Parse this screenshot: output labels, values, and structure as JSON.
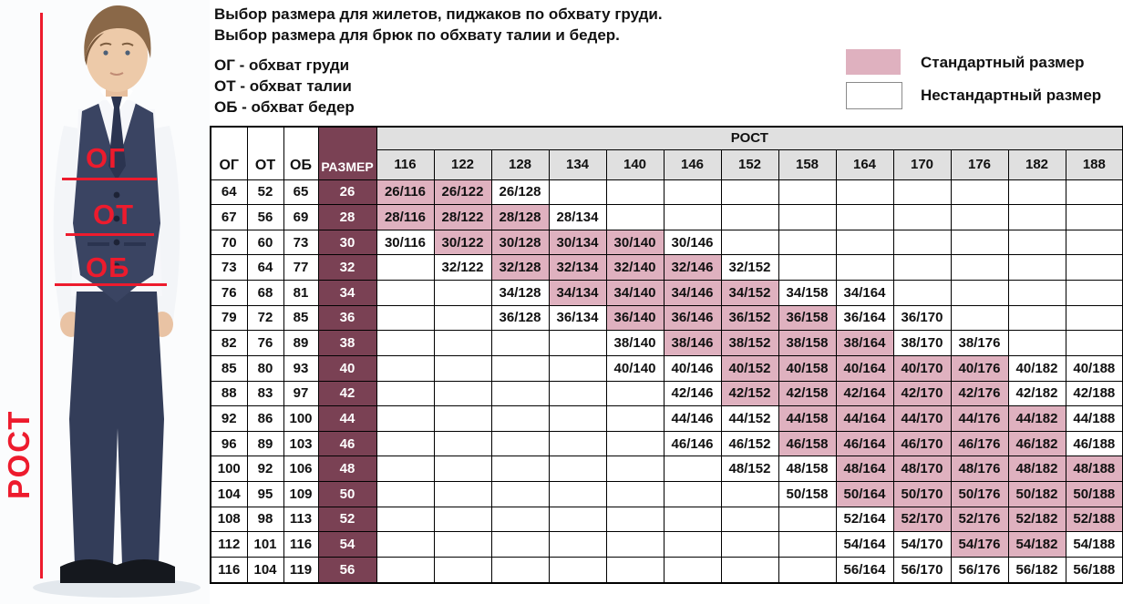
{
  "intro": {
    "line1": "Выбор размера для жилетов, пиджаков по обхвату груди.",
    "line2": "Выбор размера для брюк по обхвату талии и бедер."
  },
  "abbreviations": {
    "chest": "ОГ - обхват груди",
    "waist": "ОТ - обхват талии",
    "hips": "ОБ - обхват бедер"
  },
  "legend": {
    "standard": "Стандартный размер",
    "nonstandard": "Нестандартный размер"
  },
  "figure_labels": {
    "chest": "ОГ",
    "waist": "ОТ",
    "hips": "ОБ",
    "height": "РОСТ"
  },
  "colors": {
    "standard_cell": "#dfb1bf",
    "size_column": "#7a4154",
    "header_gray": "#e0e0e0",
    "accent_red": "#ed1b2d"
  },
  "table": {
    "col_headers": {
      "og": "ОГ",
      "ot": "ОТ",
      "ob": "ОБ",
      "size": "РАЗМЕР",
      "rost": "РОСТ"
    },
    "heights": [
      116,
      122,
      128,
      134,
      140,
      146,
      152,
      158,
      164,
      170,
      176,
      182,
      188
    ],
    "rows": [
      {
        "og": "64",
        "ot": "52",
        "ob": "65",
        "size": "26",
        "c": [
          {
            "t": "26/116",
            "s": true
          },
          {
            "t": "26/122",
            "s": true
          },
          {
            "t": "26/128",
            "s": false
          },
          null,
          null,
          null,
          null,
          null,
          null,
          null,
          null,
          null,
          null
        ]
      },
      {
        "og": "67",
        "ot": "56",
        "ob": "69",
        "size": "28",
        "c": [
          {
            "t": "28/116",
            "s": true
          },
          {
            "t": "28/122",
            "s": true
          },
          {
            "t": "28/128",
            "s": true
          },
          {
            "t": "28/134",
            "s": false
          },
          null,
          null,
          null,
          null,
          null,
          null,
          null,
          null,
          null
        ]
      },
      {
        "og": "70",
        "ot": "60",
        "ob": "73",
        "size": "30",
        "c": [
          {
            "t": "30/116",
            "s": false
          },
          {
            "t": "30/122",
            "s": true
          },
          {
            "t": "30/128",
            "s": true
          },
          {
            "t": "30/134",
            "s": true
          },
          {
            "t": "30/140",
            "s": true
          },
          {
            "t": "30/146",
            "s": false
          },
          null,
          null,
          null,
          null,
          null,
          null,
          null
        ]
      },
      {
        "og": "73",
        "ot": "64",
        "ob": "77",
        "size": "32",
        "c": [
          null,
          {
            "t": "32/122",
            "s": false
          },
          {
            "t": "32/128",
            "s": true
          },
          {
            "t": "32/134",
            "s": true
          },
          {
            "t": "32/140",
            "s": true
          },
          {
            "t": "32/146",
            "s": true
          },
          {
            "t": "32/152",
            "s": false
          },
          null,
          null,
          null,
          null,
          null,
          null
        ]
      },
      {
        "og": "76",
        "ot": "68",
        "ob": "81",
        "size": "34",
        "c": [
          null,
          null,
          {
            "t": "34/128",
            "s": false
          },
          {
            "t": "34/134",
            "s": true
          },
          {
            "t": "34/140",
            "s": true
          },
          {
            "t": "34/146",
            "s": true
          },
          {
            "t": "34/152",
            "s": true
          },
          {
            "t": "34/158",
            "s": false
          },
          {
            "t": "34/164",
            "s": false
          },
          null,
          null,
          null,
          null
        ]
      },
      {
        "og": "79",
        "ot": "72",
        "ob": "85",
        "size": "36",
        "c": [
          null,
          null,
          {
            "t": "36/128",
            "s": false
          },
          {
            "t": "36/134",
            "s": false
          },
          {
            "t": "36/140",
            "s": true
          },
          {
            "t": "36/146",
            "s": true
          },
          {
            "t": "36/152",
            "s": true
          },
          {
            "t": "36/158",
            "s": true
          },
          {
            "t": "36/164",
            "s": false
          },
          {
            "t": "36/170",
            "s": false
          },
          null,
          null,
          null
        ]
      },
      {
        "og": "82",
        "ot": "76",
        "ob": "89",
        "size": "38",
        "c": [
          null,
          null,
          null,
          null,
          {
            "t": "38/140",
            "s": false
          },
          {
            "t": "38/146",
            "s": true
          },
          {
            "t": "38/152",
            "s": true
          },
          {
            "t": "38/158",
            "s": true
          },
          {
            "t": "38/164",
            "s": true
          },
          {
            "t": "38/170",
            "s": false
          },
          {
            "t": "38/176",
            "s": false
          },
          null,
          null
        ]
      },
      {
        "og": "85",
        "ot": "80",
        "ob": "93",
        "size": "40",
        "c": [
          null,
          null,
          null,
          null,
          {
            "t": "40/140",
            "s": false
          },
          {
            "t": "40/146",
            "s": false
          },
          {
            "t": "40/152",
            "s": true
          },
          {
            "t": "40/158",
            "s": true
          },
          {
            "t": "40/164",
            "s": true
          },
          {
            "t": "40/170",
            "s": true
          },
          {
            "t": "40/176",
            "s": true
          },
          {
            "t": "40/182",
            "s": false
          },
          {
            "t": "40/188",
            "s": false
          }
        ]
      },
      {
        "og": "88",
        "ot": "83",
        "ob": "97",
        "size": "42",
        "c": [
          null,
          null,
          null,
          null,
          null,
          {
            "t": "42/146",
            "s": false
          },
          {
            "t": "42/152",
            "s": true
          },
          {
            "t": "42/158",
            "s": true
          },
          {
            "t": "42/164",
            "s": true
          },
          {
            "t": "42/170",
            "s": true
          },
          {
            "t": "42/176",
            "s": true
          },
          {
            "t": "42/182",
            "s": false
          },
          {
            "t": "42/188",
            "s": false
          }
        ]
      },
      {
        "og": "92",
        "ot": "86",
        "ob": "100",
        "size": "44",
        "c": [
          null,
          null,
          null,
          null,
          null,
          {
            "t": "44/146",
            "s": false
          },
          {
            "t": "44/152",
            "s": false
          },
          {
            "t": "44/158",
            "s": true
          },
          {
            "t": "44/164",
            "s": true
          },
          {
            "t": "44/170",
            "s": true
          },
          {
            "t": "44/176",
            "s": true
          },
          {
            "t": "44/182",
            "s": true
          },
          {
            "t": "44/188",
            "s": false
          }
        ]
      },
      {
        "og": "96",
        "ot": "89",
        "ob": "103",
        "size": "46",
        "c": [
          null,
          null,
          null,
          null,
          null,
          {
            "t": "46/146",
            "s": false
          },
          {
            "t": "46/152",
            "s": false
          },
          {
            "t": "46/158",
            "s": true
          },
          {
            "t": "46/164",
            "s": true
          },
          {
            "t": "46/170",
            "s": true
          },
          {
            "t": "46/176",
            "s": true
          },
          {
            "t": "46/182",
            "s": true
          },
          {
            "t": "46/188",
            "s": false
          }
        ]
      },
      {
        "og": "100",
        "ot": "92",
        "ob": "106",
        "size": "48",
        "c": [
          null,
          null,
          null,
          null,
          null,
          null,
          {
            "t": "48/152",
            "s": false
          },
          {
            "t": "48/158",
            "s": false
          },
          {
            "t": "48/164",
            "s": true
          },
          {
            "t": "48/170",
            "s": true
          },
          {
            "t": "48/176",
            "s": true
          },
          {
            "t": "48/182",
            "s": true
          },
          {
            "t": "48/188",
            "s": true
          }
        ]
      },
      {
        "og": "104",
        "ot": "95",
        "ob": "109",
        "size": "50",
        "c": [
          null,
          null,
          null,
          null,
          null,
          null,
          null,
          {
            "t": "50/158",
            "s": false
          },
          {
            "t": "50/164",
            "s": true
          },
          {
            "t": "50/170",
            "s": true
          },
          {
            "t": "50/176",
            "s": true
          },
          {
            "t": "50/182",
            "s": true
          },
          {
            "t": "50/188",
            "s": true
          }
        ]
      },
      {
        "og": "108",
        "ot": "98",
        "ob": "113",
        "size": "52",
        "c": [
          null,
          null,
          null,
          null,
          null,
          null,
          null,
          null,
          {
            "t": "52/164",
            "s": false
          },
          {
            "t": "52/170",
            "s": true
          },
          {
            "t": "52/176",
            "s": true
          },
          {
            "t": "52/182",
            "s": true
          },
          {
            "t": "52/188",
            "s": true
          }
        ]
      },
      {
        "og": "112",
        "ot": "101",
        "ob": "116",
        "size": "54",
        "c": [
          null,
          null,
          null,
          null,
          null,
          null,
          null,
          null,
          {
            "t": "54/164",
            "s": false
          },
          {
            "t": "54/170",
            "s": false
          },
          {
            "t": "54/176",
            "s": true
          },
          {
            "t": "54/182",
            "s": true
          },
          {
            "t": "54/188",
            "s": false
          }
        ]
      },
      {
        "og": "116",
        "ot": "104",
        "ob": "119",
        "size": "56",
        "c": [
          null,
          null,
          null,
          null,
          null,
          null,
          null,
          null,
          {
            "t": "56/164",
            "s": false
          },
          {
            "t": "56/170",
            "s": false
          },
          {
            "t": "56/176",
            "s": false
          },
          {
            "t": "56/182",
            "s": false
          },
          {
            "t": "56/188",
            "s": false
          }
        ]
      }
    ]
  }
}
